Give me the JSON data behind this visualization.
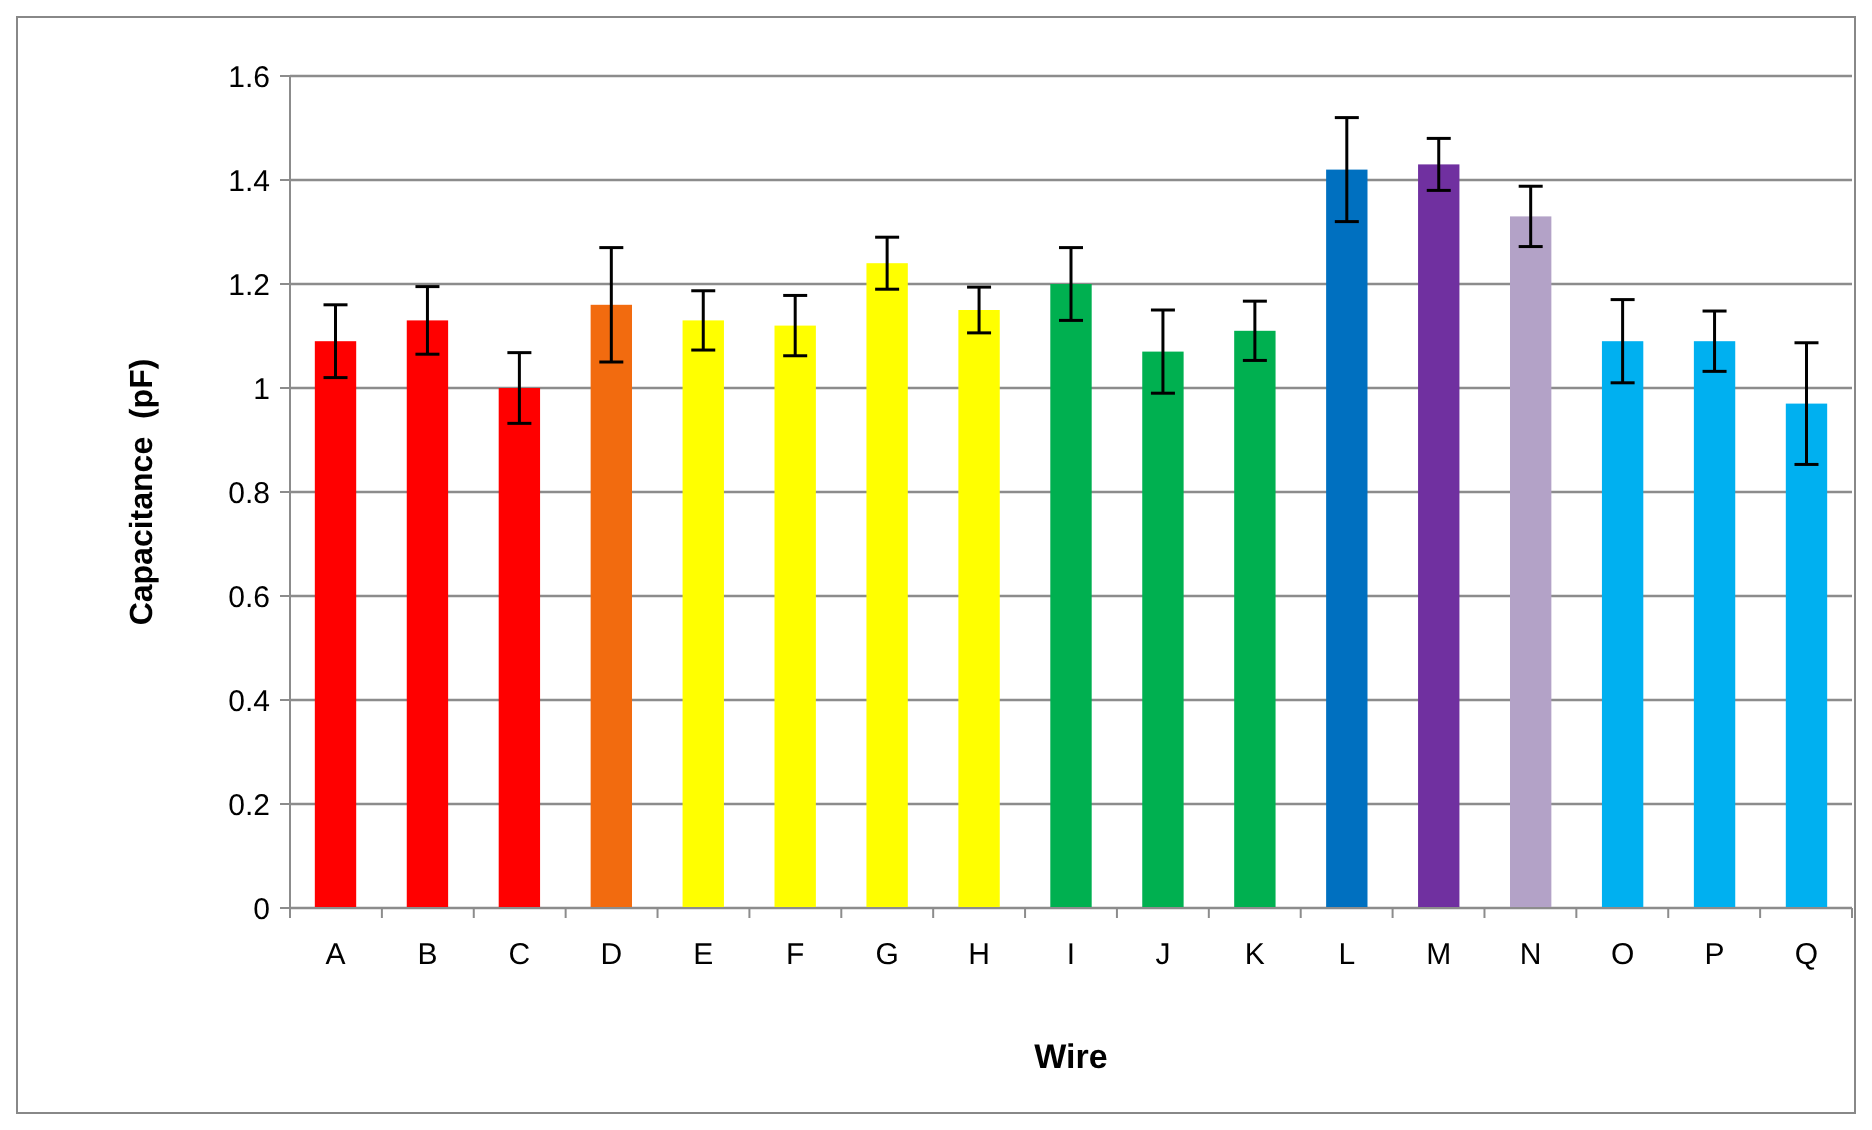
{
  "chart_data": {
    "type": "bar",
    "xlabel": "Wire",
    "ylabel": "Capacitance  (pF)",
    "categories": [
      "A",
      "B",
      "C",
      "D",
      "E",
      "F",
      "G",
      "H",
      "I",
      "J",
      "K",
      "L",
      "M",
      "N",
      "O",
      "P",
      "Q"
    ],
    "values": [
      1.09,
      1.13,
      1.0,
      1.16,
      1.13,
      1.12,
      1.24,
      1.15,
      1.2,
      1.07,
      1.11,
      1.42,
      1.43,
      1.33,
      1.09,
      1.09,
      0.97
    ],
    "errors": [
      0.07,
      0.065,
      0.068,
      0.11,
      0.057,
      0.058,
      0.05,
      0.044,
      0.07,
      0.08,
      0.057,
      0.1,
      0.05,
      0.058,
      0.08,
      0.058,
      0.117
    ],
    "colors": [
      "#ff0000",
      "#ff0000",
      "#ff0000",
      "#f26b0f",
      "#ffff00",
      "#ffff00",
      "#ffff00",
      "#ffff00",
      "#00b050",
      "#00b050",
      "#00b050",
      "#0070c0",
      "#7030a0",
      "#b3a2c7",
      "#00b0f0",
      "#00b0f0",
      "#00b0f0"
    ],
    "ylim": [
      0,
      1.6
    ],
    "yticks": [
      0,
      0.2,
      0.4,
      0.6,
      0.8,
      1,
      1.2,
      1.4,
      1.6
    ],
    "grid": "y"
  }
}
